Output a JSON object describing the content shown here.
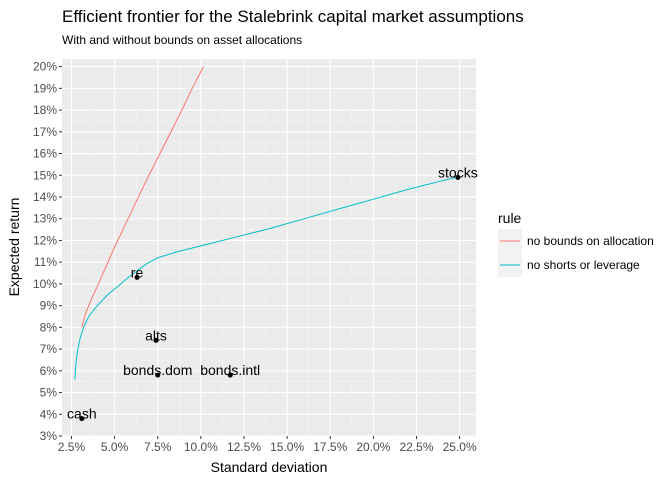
{
  "chart_data": {
    "type": "line",
    "title": "Efficient frontier for the Stalebrink capital market assumptions",
    "subtitle": "With and without bounds on asset allocations",
    "xlabel": "Standard deviation",
    "ylabel": "Expected return",
    "xlim": [
      0.0195,
      0.2595
    ],
    "ylim": [
      0.03,
      0.2035
    ],
    "x_ticks": [
      0.025,
      0.05,
      0.075,
      0.1,
      0.125,
      0.15,
      0.175,
      0.2,
      0.225,
      0.25
    ],
    "x_tick_labels": [
      "2.5%",
      "5.0%",
      "7.5%",
      "10.0%",
      "12.5%",
      "15.0%",
      "17.5%",
      "20.0%",
      "22.5%",
      "25.0%"
    ],
    "y_ticks": [
      0.03,
      0.04,
      0.05,
      0.06,
      0.07,
      0.08,
      0.09,
      0.1,
      0.11,
      0.12,
      0.13,
      0.14,
      0.15,
      0.16,
      0.17,
      0.18,
      0.19,
      0.2
    ],
    "y_tick_labels": [
      "3%",
      "4%",
      "5%",
      "6%",
      "7%",
      "8%",
      "9%",
      "10%",
      "11%",
      "12%",
      "13%",
      "14%",
      "15%",
      "16%",
      "17%",
      "18%",
      "19%",
      "20%"
    ],
    "grid": true,
    "legend_title": "rule",
    "legend_position": "right",
    "series": [
      {
        "name": "no bounds on allocation",
        "color": "#F8766D",
        "x": [
          0.031,
          0.033,
          0.036,
          0.04,
          0.045,
          0.05,
          0.056,
          0.062,
          0.068,
          0.075,
          0.082,
          0.089,
          0.095,
          0.1015
        ],
        "y": [
          0.08,
          0.086,
          0.092,
          0.099,
          0.108,
          0.117,
          0.127,
          0.137,
          0.147,
          0.158,
          0.169,
          0.18,
          0.19,
          0.2
        ]
      },
      {
        "name": "no shorts or leverage",
        "color": "#00BFC4",
        "x": [
          0.027,
          0.0275,
          0.0285,
          0.03,
          0.032,
          0.035,
          0.04,
          0.046,
          0.052,
          0.058,
          0.063,
          0.068,
          0.075,
          0.085,
          0.1,
          0.12,
          0.14,
          0.16,
          0.18,
          0.2,
          0.22,
          0.24,
          0.248
        ],
        "y": [
          0.056,
          0.063,
          0.069,
          0.075,
          0.08,
          0.085,
          0.09,
          0.095,
          0.099,
          0.103,
          0.106,
          0.109,
          0.112,
          0.1145,
          0.1175,
          0.1215,
          0.1255,
          0.13,
          0.1345,
          0.139,
          0.1435,
          0.1475,
          0.149
        ]
      }
    ],
    "points": [
      {
        "label": "stocks",
        "x": 0.249,
        "y": 0.149
      },
      {
        "label": "re",
        "x": 0.063,
        "y": 0.103
      },
      {
        "label": "alts",
        "x": 0.074,
        "y": 0.074
      },
      {
        "label": "bonds.dom",
        "x": 0.075,
        "y": 0.058
      },
      {
        "label": "bonds.intl",
        "x": 0.117,
        "y": 0.058
      },
      {
        "label": "cash",
        "x": 0.031,
        "y": 0.038
      }
    ]
  }
}
